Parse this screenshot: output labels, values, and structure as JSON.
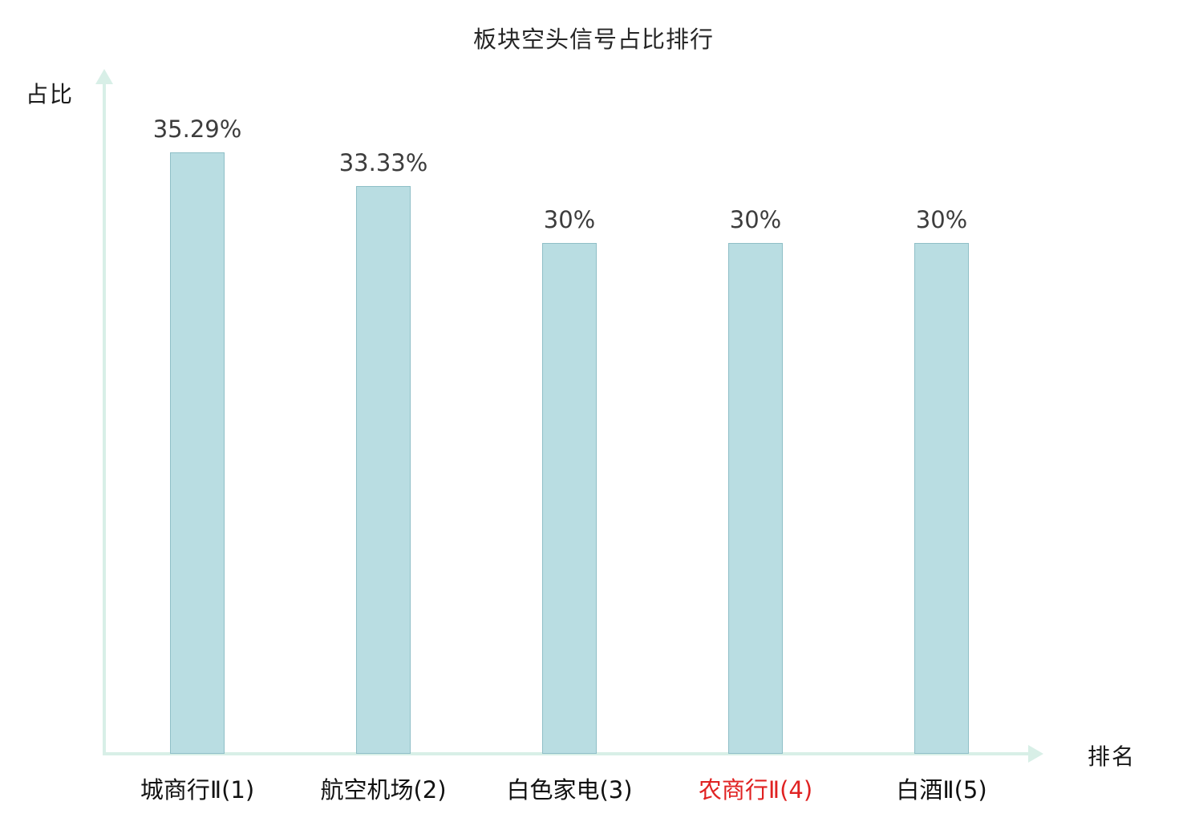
{
  "chart_data": {
    "type": "bar",
    "title": "板块空头信号占比排行",
    "xlabel": "排名",
    "ylabel": "占比",
    "categories": [
      "城商行Ⅱ(1)",
      "航空机场(2)",
      "白色家电(3)",
      "农商行Ⅱ(4)",
      "白酒Ⅱ(5)"
    ],
    "values": [
      35.29,
      33.33,
      30,
      30,
      30
    ],
    "value_labels": [
      "35.29%",
      "33.33%",
      "30%",
      "30%",
      "30%"
    ],
    "highlight_index": 3,
    "highlight_color": "#e02222",
    "bar_color": "#b9dde2",
    "bar_border_color": "#8fbfc7",
    "axis_color": "#d8efe7",
    "ylim": [
      0,
      40
    ],
    "legend": null,
    "grid": false
  }
}
